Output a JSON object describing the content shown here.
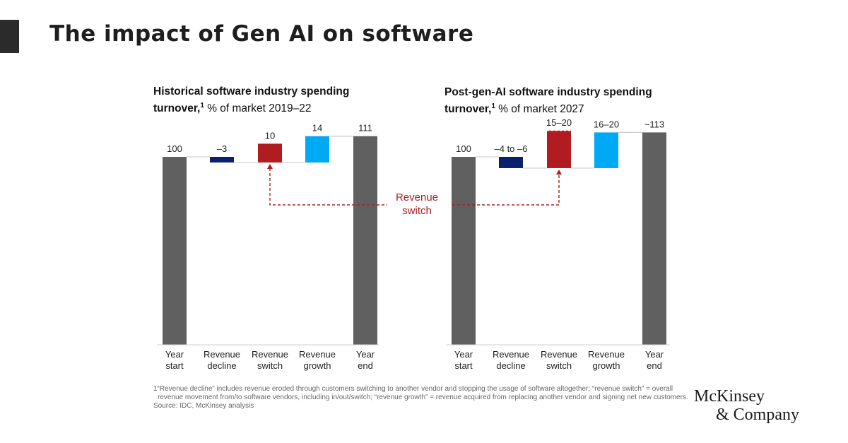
{
  "page": {
    "title": "The impact of Gen AI on software",
    "footnote": "1“Revenue decline” includes revenue eroded through customers switching to another vendor and stopping the usage of software altogether; “revenue switch” = overall revenue movement from/to software vendors, including in/out/switch; “revenue growth” = revenue acquired from replacing another vendor and signing net new customers.",
    "source": "Source: IDC, McKinsey analysis",
    "logo_line1": "McKinsey",
    "logo_line2": "& Company",
    "callout": [
      "Revenue",
      "switch"
    ]
  },
  "colors": {
    "total": "#606060",
    "decline": "#0a1f6e",
    "switch": "#b01c20",
    "growth": "#00a9f4",
    "callout": "#b01c20",
    "connector": "#c8c8c8"
  },
  "chart_data": [
    {
      "type": "bar",
      "subtype": "waterfall",
      "title_bold_1": "Historical software industry spending",
      "title_bold_2": "turnover,",
      "title_sup": "1",
      "title_rest": " % of market 2019–22",
      "categories": [
        [
          "Year",
          "start"
        ],
        [
          "Revenue",
          "decline"
        ],
        [
          "Revenue",
          "switch"
        ],
        [
          "Revenue",
          "growth"
        ],
        [
          "Year",
          "end"
        ]
      ],
      "labels": [
        "100",
        "–3",
        "10",
        "14",
        "111"
      ],
      "bars": [
        {
          "kind": "total",
          "from": 0,
          "to": 100
        },
        {
          "kind": "decline",
          "from": 100,
          "to": 97
        },
        {
          "kind": "switch",
          "from": 97,
          "to": 107
        },
        {
          "kind": "growth",
          "from": 97,
          "to": 111
        },
        {
          "kind": "total",
          "from": 0,
          "to": 111
        }
      ],
      "ylim": [
        0,
        120
      ]
    },
    {
      "type": "bar",
      "subtype": "waterfall",
      "title_bold_1": "Post-gen-AI software industry spending",
      "title_bold_2": "turnover,",
      "title_sup": "1",
      "title_rest": " % of market 2027",
      "categories": [
        [
          "Year",
          "start"
        ],
        [
          "Revenue",
          "decline"
        ],
        [
          "Revenue",
          "switch"
        ],
        [
          "Revenue",
          "growth"
        ],
        [
          "Year",
          "end"
        ]
      ],
      "labels": [
        "100",
        "–4 to –6",
        "15–20",
        "16–20",
        "~113"
      ],
      "bars": [
        {
          "kind": "total",
          "from": 0,
          "to": 100
        },
        {
          "kind": "decline",
          "from": 100,
          "to": 94
        },
        {
          "kind": "switch",
          "from": 94,
          "to": 114,
          "dashed_top": 107
        },
        {
          "kind": "growth",
          "from": 94,
          "to": 113
        },
        {
          "kind": "total",
          "from": 0,
          "to": 113
        }
      ],
      "ylim": [
        0,
        120
      ]
    }
  ]
}
